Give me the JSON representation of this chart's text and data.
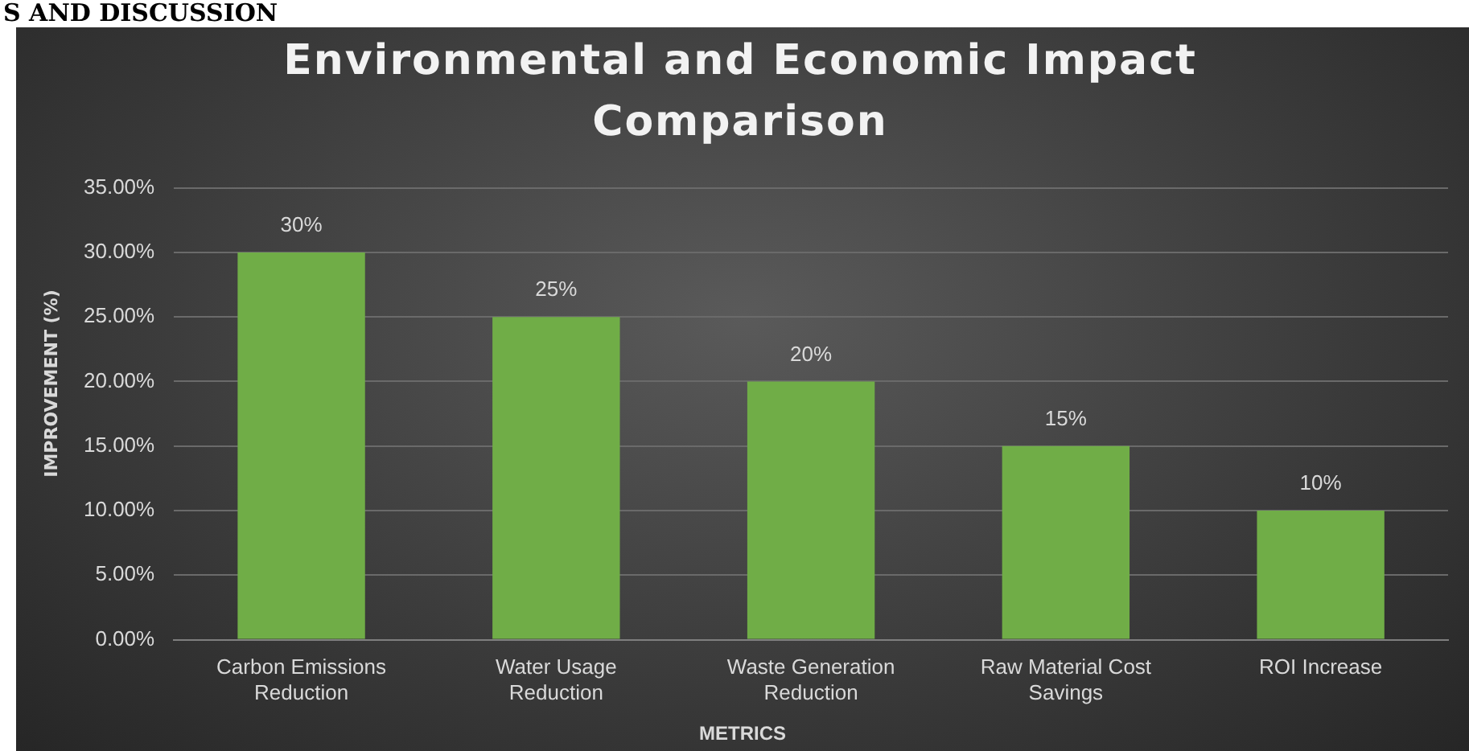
{
  "chart_data": {
    "type": "bar",
    "title": "Environmental and Economic Impact Comparison",
    "xlabel": "METRICS",
    "ylabel": "IMPROVEMENT (%)",
    "categories": [
      "Carbon Emissions Reduction",
      "Water Usage Reduction",
      "Waste Generation Reduction",
      "Raw Material Cost Savings",
      "ROI Increase"
    ],
    "values": [
      30,
      25,
      20,
      15,
      10
    ],
    "value_labels": [
      "30%",
      "25%",
      "20%",
      "15%",
      "10%"
    ],
    "color": "#70ad47",
    "ylim": [
      0,
      35
    ],
    "yticks": [
      {
        "value": 0,
        "label": "0.00%"
      },
      {
        "value": 5,
        "label": "5.00%"
      },
      {
        "value": 10,
        "label": "10.00%"
      },
      {
        "value": 15,
        "label": "15.00%"
      },
      {
        "value": 20,
        "label": "20.00%"
      },
      {
        "value": 25,
        "label": "25.00%"
      },
      {
        "value": 30,
        "label": "30.00%"
      },
      {
        "value": 35,
        "label": "35.00%"
      }
    ],
    "grid": "y",
    "legend": false,
    "annotations": [
      "S AND DISCUSSION"
    ]
  }
}
